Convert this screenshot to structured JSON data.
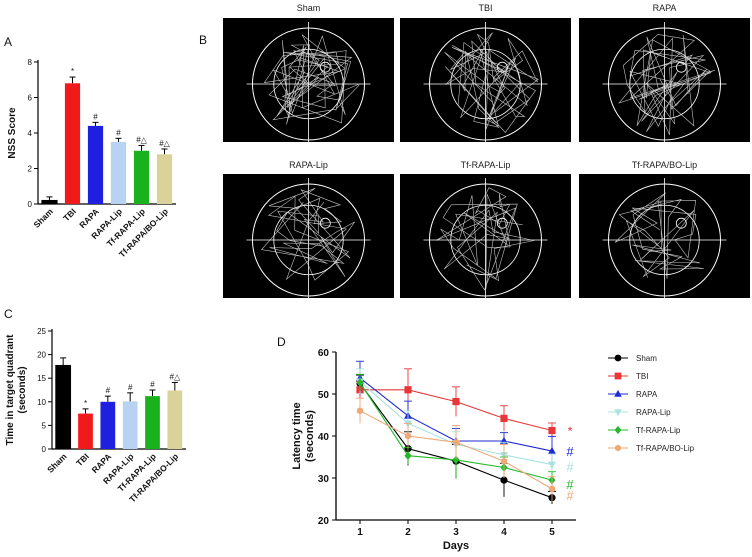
{
  "chart_data": [
    {
      "type": "bar",
      "panel_label": "A",
      "ylabel": "NSS Score",
      "ylim": [
        0,
        8
      ],
      "yticks": [
        0,
        2,
        4,
        6,
        8
      ],
      "categories": [
        "Sham",
        "TBI",
        "RAPA",
        "RAPA-Lip",
        "Tf-RAPA-Lip",
        "Tf-RAPA/BO-Lip"
      ],
      "values": [
        0.2,
        6.8,
        4.4,
        3.5,
        3.0,
        2.8
      ],
      "errors": [
        0.2,
        0.35,
        0.2,
        0.2,
        0.3,
        0.3
      ],
      "annotations": [
        "",
        "*",
        "#",
        "#",
        "#△",
        "#△"
      ],
      "colors": [
        "#000000",
        "#f01a1a",
        "#1f1fe0",
        "#b8d3f2",
        "#19b21c",
        "#d9d39a"
      ]
    },
    {
      "type": "image_grid",
      "panel_label": "B",
      "titles": [
        "Sham",
        "TBI",
        "RAPA",
        "RAPA-Lip",
        "Tf-RAPA-Lip",
        "Tf-RAPA/BO-Lip"
      ]
    },
    {
      "type": "bar",
      "panel_label": "C",
      "ylabel_lines": [
        "Time in target quadrant",
        "(seconds)"
      ],
      "ylim": [
        0,
        25
      ],
      "yticks": [
        0,
        5,
        10,
        15,
        20,
        25
      ],
      "categories": [
        "Sham",
        "TBI",
        "RAPA",
        "RAPA-Lip",
        "Tf-RAPA-Lip",
        "Tf-RAPA/BO-Lip"
      ],
      "values": [
        17.7,
        7.5,
        10.0,
        10.1,
        11.2,
        12.4
      ],
      "errors": [
        1.6,
        1.0,
        1.2,
        1.8,
        1.3,
        1.7
      ],
      "annotations": [
        "",
        "*",
        "#",
        "#",
        "#",
        "#△"
      ],
      "colors": [
        "#000000",
        "#f01a1a",
        "#1f1fe0",
        "#b8d3f2",
        "#19b21c",
        "#d9d39a"
      ]
    },
    {
      "type": "line",
      "panel_label": "D",
      "xlabel": "Days",
      "ylabel_lines": [
        "Latency time",
        "(seconds)"
      ],
      "x": [
        1,
        2,
        3,
        4,
        5
      ],
      "xlim": [
        0.5,
        5.5
      ],
      "ylim": [
        20,
        60
      ],
      "yticks": [
        20,
        30,
        40,
        50,
        60
      ],
      "series": [
        {
          "name": "Sham",
          "color": "#000000",
          "marker": "circle",
          "values": [
            52.5,
            37,
            34,
            29.5,
            25.3
          ],
          "errors": [
            2,
            4,
            4,
            4,
            1.5
          ],
          "annotation": ""
        },
        {
          "name": "TBI",
          "color": "#e8373a",
          "marker": "square",
          "values": [
            51,
            51,
            48.2,
            44.2,
            41.3
          ],
          "errors": [
            2,
            5,
            3.5,
            3,
            1.8
          ],
          "annotation": "*"
        },
        {
          "name": "RAPA",
          "color": "#1f2ad1",
          "marker": "triangle",
          "values": [
            53.8,
            44.8,
            38.8,
            38.8,
            36.4
          ],
          "errors": [
            4,
            3.5,
            3,
            2,
            3.5
          ],
          "annotation": "#"
        },
        {
          "name": "RAPA-Lip",
          "color": "#a8e3e0",
          "marker": "triangle-down",
          "values": [
            53,
            43,
            38,
            35.5,
            33.2
          ],
          "errors": [
            3,
            3,
            3,
            3,
            2.5
          ],
          "annotation": "#"
        },
        {
          "name": "Tf-RAPA-Lip",
          "color": "#24b82a",
          "marker": "diamond",
          "values": [
            52.7,
            35.3,
            34.3,
            32.5,
            29.5
          ],
          "errors": [
            2,
            2,
            4.5,
            2.5,
            2
          ],
          "annotation": "#"
        },
        {
          "name": "Tf-RAPA/BO-Lip",
          "color": "#f0a878",
          "marker": "hexagon",
          "values": [
            46,
            40,
            38.5,
            34,
            27.4
          ],
          "errors": [
            3,
            3,
            4,
            4,
            3
          ],
          "annotation": "#"
        }
      ]
    }
  ]
}
